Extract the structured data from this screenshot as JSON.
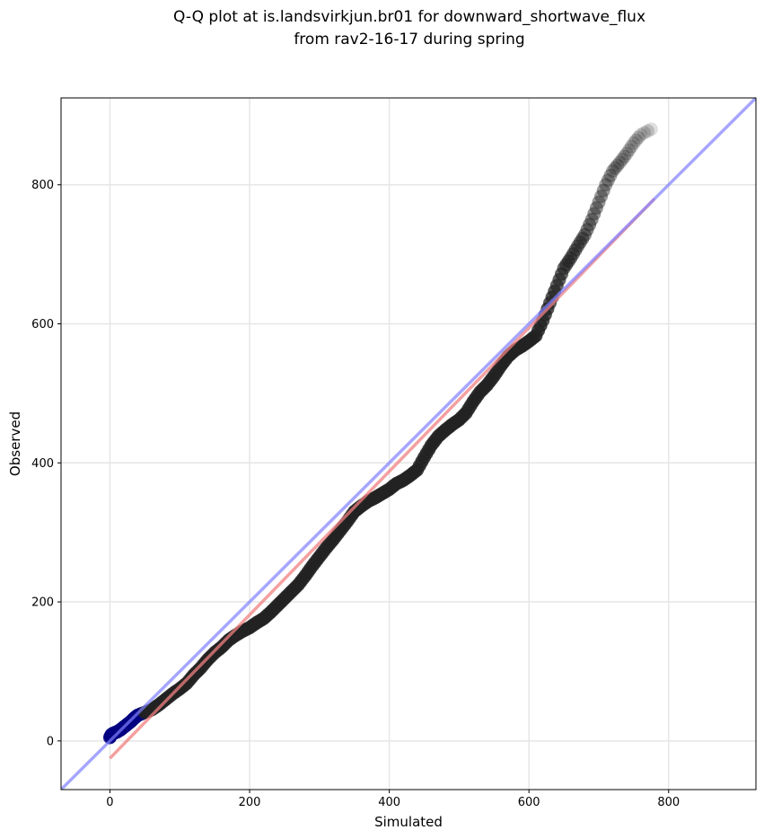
{
  "chart_data": {
    "type": "scatter",
    "title": [
      "Q-Q plot at is.landsvirkjun.br01 for downward_shortwave_flux",
      "from rav2-16-17 during spring"
    ],
    "xlabel": "Simulated",
    "ylabel": "Observed",
    "xlim": [
      -70,
      925
    ],
    "ylim": [
      -70,
      925
    ],
    "xticks": [
      0,
      200,
      400,
      600,
      800
    ],
    "yticks": [
      0,
      200,
      400,
      600,
      800
    ],
    "grid": true,
    "colors": {
      "points": "#222222",
      "identity_line": "#8080ff",
      "fit_line": "#f08080",
      "low_points": "#000080"
    },
    "quantiles": [
      [
        0,
        5
      ],
      [
        2,
        9
      ],
      [
        5,
        11
      ],
      [
        10,
        13
      ],
      [
        15,
        16
      ],
      [
        20,
        20
      ],
      [
        25,
        24
      ],
      [
        30,
        28
      ],
      [
        35,
        33
      ],
      [
        40,
        37
      ],
      [
        50,
        41
      ],
      [
        60,
        45
      ],
      [
        70,
        52
      ],
      [
        80,
        60
      ],
      [
        90,
        68
      ],
      [
        100,
        75
      ],
      [
        110,
        83
      ],
      [
        120,
        95
      ],
      [
        130,
        105
      ],
      [
        140,
        117
      ],
      [
        150,
        127
      ],
      [
        160,
        135
      ],
      [
        170,
        145
      ],
      [
        180,
        152
      ],
      [
        190,
        158
      ],
      [
        200,
        163
      ],
      [
        210,
        170
      ],
      [
        220,
        176
      ],
      [
        230,
        185
      ],
      [
        240,
        195
      ],
      [
        250,
        205
      ],
      [
        260,
        215
      ],
      [
        270,
        225
      ],
      [
        280,
        238
      ],
      [
        290,
        252
      ],
      [
        300,
        265
      ],
      [
        310,
        278
      ],
      [
        320,
        290
      ],
      [
        330,
        303
      ],
      [
        340,
        316
      ],
      [
        350,
        330
      ],
      [
        360,
        338
      ],
      [
        370,
        345
      ],
      [
        380,
        350
      ],
      [
        390,
        356
      ],
      [
        400,
        362
      ],
      [
        410,
        370
      ],
      [
        420,
        375
      ],
      [
        430,
        382
      ],
      [
        440,
        390
      ],
      [
        450,
        408
      ],
      [
        460,
        425
      ],
      [
        470,
        438
      ],
      [
        480,
        447
      ],
      [
        490,
        455
      ],
      [
        500,
        462
      ],
      [
        510,
        472
      ],
      [
        520,
        488
      ],
      [
        530,
        502
      ],
      [
        540,
        512
      ],
      [
        550,
        525
      ],
      [
        560,
        540
      ],
      [
        570,
        553
      ],
      [
        580,
        562
      ],
      [
        590,
        568
      ],
      [
        600,
        575
      ],
      [
        610,
        583
      ],
      [
        620,
        605
      ],
      [
        630,
        630
      ],
      [
        640,
        655
      ],
      [
        650,
        680
      ],
      [
        660,
        695
      ],
      [
        670,
        712
      ],
      [
        680,
        728
      ],
      [
        690,
        750
      ],
      [
        700,
        775
      ],
      [
        710,
        800
      ],
      [
        720,
        820
      ],
      [
        730,
        832
      ],
      [
        740,
        845
      ],
      [
        750,
        860
      ],
      [
        760,
        872
      ],
      [
        775,
        880
      ]
    ],
    "identity_line": [
      [
        -70,
        -70
      ],
      [
        925,
        925
      ]
    ],
    "fit_line": [
      [
        0,
        -25
      ],
      [
        780,
        780
      ]
    ]
  }
}
